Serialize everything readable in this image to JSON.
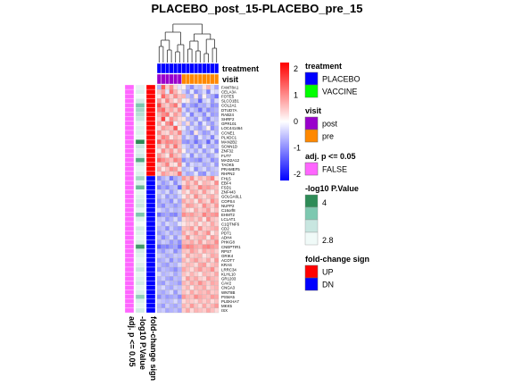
{
  "chart_data": {
    "type": "heatmap",
    "title": "PLACEBO_post_15-PLACEBO_pre_15",
    "columns": {
      "count": 15,
      "treatment": [
        "PLACEBO",
        "PLACEBO",
        "PLACEBO",
        "PLACEBO",
        "PLACEBO",
        "PLACEBO",
        "PLACEBO",
        "PLACEBO",
        "PLACEBO",
        "PLACEBO",
        "PLACEBO",
        "PLACEBO",
        "PLACEBO",
        "PLACEBO",
        "PLACEBO"
      ],
      "visit": [
        "post",
        "post",
        "post",
        "post",
        "post",
        "post",
        "pre",
        "pre",
        "pre",
        "pre",
        "pre",
        "pre",
        "pre",
        "pre",
        "pre"
      ]
    },
    "column_annotation_labels": [
      "treatment",
      "visit"
    ],
    "row_annotation_labels": [
      "fold-change sign",
      "-log10 P.Value",
      "adj. p <= 0.05"
    ],
    "rows": [
      "FAM78A1",
      "CELA3A",
      "FOTE5",
      "SLCO1B1",
      "COL2A1",
      "DTUD7A",
      "RAB24",
      "SHRF2",
      "GPR101",
      "LOC441464",
      "CCNE1",
      "PLXDC1",
      "MAN2B2",
      "SCNN1D",
      "ZNF32",
      "FUT7",
      "MAD2A12",
      "TAOK5",
      "PRAMEF5",
      "RHPN2",
      "FHL5",
      "EBF4",
      "FSD1",
      "ZNF443",
      "GOLGA6L1",
      "COPS4",
      "NUFP2",
      "C16orf8",
      "EHMT2",
      "LCLAT1",
      "C1QTNF6",
      "CD2",
      "PDT1",
      "ADH4",
      "PHKG8",
      "CNEPTIR1",
      "RPS7",
      "GRIK4",
      "ACOT7",
      "KRAS",
      "LRRC34",
      "KLHL10",
      "GR1203",
      "CAV2",
      "CNGA3",
      "WNT8B",
      "PSMA5",
      "PLEKHA7",
      "MKK5",
      "ISX"
    ],
    "fold_change_sign": [
      "UP",
      "UP",
      "UP",
      "UP",
      "UP",
      "UP",
      "UP",
      "UP",
      "UP",
      "UP",
      "UP",
      "UP",
      "UP",
      "UP",
      "UP",
      "UP",
      "UP",
      "UP",
      "UP",
      "UP",
      "DN",
      "DN",
      "DN",
      "DN",
      "DN",
      "DN",
      "DN",
      "DN",
      "DN",
      "DN",
      "DN",
      "DN",
      "DN",
      "DN",
      "DN",
      "DN",
      "DN",
      "DN",
      "DN",
      "DN",
      "DN",
      "DN",
      "DN",
      "DN",
      "DN",
      "DN",
      "DN",
      "DN",
      "DN",
      "DN"
    ],
    "neg_log10_pvalue": [
      2.9,
      3.0,
      2.8,
      3.1,
      3.6,
      3.4,
      3.3,
      3.2,
      2.9,
      3.0,
      3.0,
      2.9,
      4.0,
      3.2,
      3.0,
      3.1,
      3.8,
      3.0,
      2.9,
      3.0,
      3.4,
      3.0,
      3.7,
      2.9,
      3.0,
      3.1,
      3.2,
      2.9,
      3.6,
      3.0,
      2.8,
      3.1,
      3.0,
      2.9,
      3.0,
      3.9,
      3.1,
      3.0,
      2.9,
      3.0,
      3.2,
      2.9,
      3.0,
      3.1,
      2.9,
      3.0,
      3.5,
      3.0,
      2.9,
      3.1
    ],
    "adj_p_le_005": "FALSE",
    "values": [
      [
        -0.6,
        1.3,
        0.4,
        0.9,
        0.3,
        -0.2,
        0.1,
        -0.6,
        -0.9,
        -0.4,
        -0.5,
        0.2,
        0.6,
        -0.3,
        -0.7
      ],
      [
        0.5,
        0.8,
        -0.2,
        1.1,
        0.6,
        0.2,
        -0.4,
        -0.8,
        -0.2,
        -0.9,
        -0.6,
        -0.3,
        -1.0,
        -0.2,
        -0.3
      ],
      [
        0.2,
        1.2,
        0.7,
        0.4,
        0.9,
        0.5,
        0.6,
        -0.5,
        -0.7,
        0.2,
        -0.8,
        0.1,
        -0.6,
        -0.7,
        -1.1
      ],
      [
        0.8,
        0.3,
        1.0,
        0.5,
        0.2,
        0.6,
        -0.1,
        0.2,
        -0.6,
        -0.5,
        -1.2,
        -0.4,
        -0.2,
        -0.8,
        -0.3
      ],
      [
        1.4,
        0.6,
        0.4,
        0.8,
        1.1,
        0.3,
        -0.9,
        -0.5,
        -0.8,
        -1.0,
        -0.6,
        -0.7,
        -0.4,
        -0.9,
        -0.8
      ],
      [
        1.0,
        1.2,
        0.5,
        0.7,
        0.4,
        0.9,
        -0.3,
        -0.8,
        -0.4,
        -0.6,
        -1.1,
        -0.5,
        -0.9,
        -0.7,
        -0.6
      ],
      [
        0.6,
        0.9,
        1.1,
        0.3,
        0.8,
        0.5,
        -0.6,
        -0.2,
        -1.0,
        -0.4,
        -0.5,
        -0.9,
        -0.3,
        -0.8,
        -0.7
      ],
      [
        0.4,
        1.5,
        0.2,
        0.9,
        0.6,
        0.3,
        0.2,
        -0.6,
        -0.5,
        -0.8,
        -0.2,
        -0.7,
        -1.0,
        -0.4,
        -0.5
      ],
      [
        0.7,
        0.2,
        0.9,
        1.2,
        -0.1,
        0.4,
        -0.5,
        0.3,
        -0.7,
        -0.3,
        -0.9,
        -0.2,
        -0.6,
        -0.8,
        -0.4
      ],
      [
        0.3,
        0.8,
        0.6,
        0.5,
        1.3,
        0.2,
        -0.2,
        -0.7,
        -0.3,
        -0.6,
        -0.8,
        -0.5,
        0.1,
        -0.9,
        -0.6
      ],
      [
        0.9,
        0.4,
        0.3,
        0.7,
        0.5,
        1.0,
        -0.4,
        -0.6,
        -0.9,
        0.2,
        -0.5,
        -0.8,
        -0.7,
        -0.3,
        -0.6
      ],
      [
        0.5,
        1.0,
        0.8,
        0.2,
        0.6,
        0.4,
        -0.7,
        -0.3,
        -0.5,
        -0.9,
        -0.2,
        -0.6,
        -0.4,
        -1.0,
        -0.3
      ],
      [
        1.3,
        0.7,
        1.0,
        0.9,
        0.8,
        0.6,
        -0.8,
        -0.9,
        -0.6,
        -1.1,
        -0.7,
        -0.5,
        -1.2,
        -0.4,
        -0.9
      ],
      [
        0.6,
        0.3,
        0.9,
        0.4,
        1.1,
        0.5,
        -0.3,
        -0.5,
        -0.8,
        -0.4,
        -0.9,
        -0.2,
        -0.6,
        -0.7,
        -0.5
      ],
      [
        0.2,
        0.9,
        0.5,
        0.8,
        0.3,
        0.7,
        0.1,
        -0.6,
        -0.4,
        -0.7,
        -0.3,
        -0.8,
        -0.5,
        -0.2,
        -0.9
      ],
      [
        0.8,
        0.5,
        0.2,
        1.0,
        0.6,
        0.4,
        -0.5,
        -0.2,
        -0.9,
        -0.3,
        -0.6,
        -0.4,
        -0.8,
        -0.6,
        -0.3
      ],
      [
        1.2,
        0.9,
        0.7,
        0.5,
        1.0,
        0.8,
        -0.9,
        -0.6,
        -0.7,
        -0.8,
        -1.0,
        -0.5,
        -0.4,
        -0.9,
        -0.7
      ],
      [
        0.4,
        0.6,
        1.0,
        0.3,
        0.2,
        0.9,
        -0.2,
        -0.8,
        -0.3,
        -0.5,
        -0.4,
        -0.7,
        -0.6,
        -0.3,
        -0.8
      ],
      [
        0.7,
        0.2,
        0.5,
        0.9,
        0.8,
        0.3,
        -0.6,
        -0.4,
        -0.2,
        -0.9,
        -0.5,
        -0.3,
        -0.7,
        -0.5,
        -0.4
      ],
      [
        0.3,
        0.8,
        0.6,
        0.4,
        0.5,
        1.1,
        -0.4,
        -0.7,
        -0.6,
        -0.2,
        -0.8,
        -0.9,
        -0.3,
        -0.6,
        -0.5
      ],
      [
        -0.9,
        -0.6,
        -0.4,
        -1.1,
        -0.7,
        -0.5,
        0.8,
        0.5,
        0.9,
        0.3,
        0.6,
        0.4,
        0.7,
        1.0,
        0.2
      ],
      [
        -0.5,
        -0.8,
        -0.6,
        -0.3,
        -0.9,
        -0.4,
        0.3,
        0.7,
        0.4,
        0.8,
        0.2,
        0.6,
        0.5,
        0.3,
        0.9
      ],
      [
        -1.0,
        -0.7,
        -0.9,
        -0.6,
        -0.5,
        -1.2,
        0.6,
        0.9,
        0.5,
        0.4,
        1.0,
        0.7,
        0.8,
        0.6,
        0.5
      ],
      [
        -0.4,
        -0.6,
        -0.3,
        -0.8,
        -0.5,
        -0.2,
        0.5,
        0.2,
        0.7,
        0.6,
        0.3,
        0.8,
        0.4,
        0.2,
        0.6
      ],
      [
        -0.6,
        -0.3,
        -0.8,
        -0.5,
        -0.7,
        -0.4,
        0.2,
        0.6,
        0.3,
        0.9,
        0.5,
        0.3,
        0.6,
        0.7,
        0.4
      ],
      [
        -0.8,
        -0.5,
        -0.6,
        -0.9,
        -0.3,
        -0.7,
        0.7,
        0.4,
        0.6,
        0.2,
        0.8,
        0.5,
        0.3,
        0.9,
        0.6
      ],
      [
        -0.7,
        -0.9,
        -0.5,
        -0.6,
        -0.8,
        -0.6,
        0.4,
        0.8,
        0.7,
        0.5,
        0.3,
        0.9,
        0.6,
        0.4,
        0.8
      ],
      [
        -0.3,
        -0.5,
        -0.7,
        -0.4,
        -0.6,
        -0.5,
        0.6,
        0.3,
        0.2,
        0.7,
        0.4,
        0.5,
        0.8,
        0.3,
        0.5
      ],
      [
        -1.1,
        -0.8,
        -0.7,
        -0.9,
        -1.0,
        -0.6,
        0.9,
        0.7,
        0.8,
        0.6,
        0.5,
        1.0,
        0.7,
        0.8,
        0.9
      ],
      [
        -0.5,
        -0.4,
        -0.8,
        -0.6,
        -0.3,
        -0.7,
        0.3,
        0.5,
        0.6,
        0.4,
        0.7,
        0.2,
        0.9,
        0.5,
        0.4
      ],
      [
        -0.4,
        -0.7,
        -0.3,
        -0.5,
        -0.6,
        -0.2,
        0.2,
        0.4,
        0.3,
        0.6,
        0.2,
        0.5,
        0.3,
        0.7,
        0.4
      ],
      [
        -0.6,
        -0.5,
        -0.9,
        -0.4,
        -0.7,
        -0.8,
        0.5,
        0.6,
        0.8,
        0.3,
        0.9,
        0.4,
        0.5,
        0.6,
        0.7
      ],
      [
        -0.8,
        -0.6,
        -0.4,
        -0.7,
        -0.5,
        -0.6,
        0.7,
        0.3,
        0.5,
        0.8,
        0.4,
        0.6,
        0.9,
        0.2,
        0.5
      ],
      [
        -0.5,
        -0.9,
        -0.6,
        -0.3,
        -0.8,
        -0.4,
        0.4,
        0.9,
        0.3,
        0.5,
        0.6,
        0.7,
        0.2,
        0.8,
        0.6
      ],
      [
        -0.7,
        -0.4,
        -0.5,
        -0.8,
        -0.6,
        -0.9,
        0.6,
        0.5,
        0.7,
        0.4,
        0.8,
        0.3,
        0.6,
        0.5,
        0.9
      ],
      [
        -1.2,
        -0.9,
        -1.0,
        -0.8,
        -0.7,
        -1.1,
        0.8,
        1.0,
        0.9,
        0.7,
        0.6,
        0.9,
        1.0,
        0.8,
        0.7
      ],
      [
        -0.6,
        -0.8,
        -0.5,
        -0.4,
        -0.9,
        -0.6,
        0.5,
        0.4,
        0.8,
        0.6,
        0.3,
        0.7,
        0.5,
        0.6,
        0.4
      ],
      [
        -0.4,
        -0.5,
        -0.7,
        -0.6,
        -0.4,
        -0.5,
        0.3,
        0.7,
        0.4,
        0.5,
        0.6,
        0.2,
        0.4,
        0.7,
        0.6
      ],
      [
        -0.7,
        -0.6,
        -0.4,
        -0.9,
        -0.5,
        -0.7,
        0.6,
        0.3,
        0.6,
        0.8,
        0.5,
        0.4,
        0.7,
        0.3,
        0.8
      ],
      [
        -0.5,
        -0.7,
        -0.8,
        -0.5,
        -0.6,
        -0.3,
        0.4,
        0.6,
        0.5,
        0.3,
        0.7,
        0.8,
        0.3,
        0.5,
        0.6
      ],
      [
        -0.8,
        -0.5,
        -0.6,
        -0.7,
        -0.9,
        -0.6,
        0.7,
        0.5,
        0.3,
        0.6,
        0.8,
        0.5,
        0.6,
        0.9,
        0.4
      ],
      [
        -0.3,
        -0.6,
        -0.5,
        -0.4,
        -0.7,
        -0.5,
        0.5,
        0.3,
        0.6,
        0.4,
        0.2,
        0.6,
        0.5,
        0.4,
        0.7
      ],
      [
        -0.6,
        -0.4,
        -0.7,
        -0.8,
        -0.5,
        -0.6,
        0.3,
        0.8,
        0.5,
        0.7,
        0.4,
        0.3,
        0.8,
        0.6,
        0.5
      ],
      [
        -0.7,
        -0.8,
        -0.4,
        -0.6,
        -0.6,
        -0.8,
        0.6,
        0.4,
        0.7,
        0.5,
        0.9,
        0.6,
        0.4,
        0.7,
        0.6
      ],
      [
        -0.5,
        -0.3,
        -0.6,
        -0.7,
        -0.4,
        -0.5,
        0.4,
        0.6,
        0.2,
        0.6,
        0.5,
        0.7,
        0.3,
        0.5,
        0.6
      ],
      [
        -0.6,
        -0.7,
        -0.5,
        -0.3,
        -0.8,
        -0.4,
        0.5,
        0.3,
        0.7,
        0.4,
        0.6,
        0.5,
        0.7,
        0.4,
        0.5
      ],
      [
        -0.9,
        -0.6,
        -0.8,
        -0.7,
        -0.6,
        -0.9,
        0.8,
        0.6,
        0.5,
        0.9,
        0.7,
        0.6,
        0.5,
        0.8,
        0.7
      ],
      [
        -0.4,
        -0.5,
        -0.6,
        -0.5,
        -0.3,
        -0.6,
        0.3,
        0.5,
        0.4,
        0.3,
        0.6,
        0.4,
        0.6,
        0.3,
        0.5
      ],
      [
        -0.6,
        -0.8,
        -0.4,
        -0.6,
        -0.7,
        -0.5,
        0.6,
        0.4,
        0.8,
        0.5,
        0.3,
        0.7,
        0.4,
        0.6,
        0.8
      ],
      [
        -0.5,
        -0.4,
        -0.7,
        -0.6,
        -0.5,
        -0.7,
        0.4,
        0.7,
        0.3,
        0.6,
        0.5,
        0.4,
        0.7,
        0.5,
        0.3
      ]
    ],
    "color_scale": {
      "min": -2,
      "max": 2,
      "low": "#0000FF",
      "mid": "#FFFFFF",
      "high": "#FF0000",
      "ticks": [
        "2",
        "1",
        "0",
        "-1",
        "-2"
      ]
    },
    "legends": {
      "treatment": {
        "title": "treatment",
        "items": [
          {
            "label": "PLACEBO",
            "color": "#0000FF"
          },
          {
            "label": "VACCINE",
            "color": "#00FF00"
          }
        ]
      },
      "visit": {
        "title": "visit",
        "items": [
          {
            "label": "post",
            "color": "#9900CC"
          },
          {
            "label": "pre",
            "color": "#FF8800"
          }
        ]
      },
      "adj": {
        "title": "adj. p <= 0.05",
        "items": [
          {
            "label": "FALSE",
            "color": "#FF66FF"
          }
        ]
      },
      "pval": {
        "title": "-log10 P.Value",
        "top": "4",
        "bottom": "2.8",
        "colors": [
          "#2E8B57",
          "#7DC8B0",
          "#C8E6E0",
          "#F0FAF8"
        ]
      },
      "fc": {
        "title": "fold-change sign",
        "items": [
          {
            "label": "UP",
            "color": "#FF0000"
          },
          {
            "label": "DN",
            "color": "#0000FF"
          }
        ]
      }
    }
  }
}
